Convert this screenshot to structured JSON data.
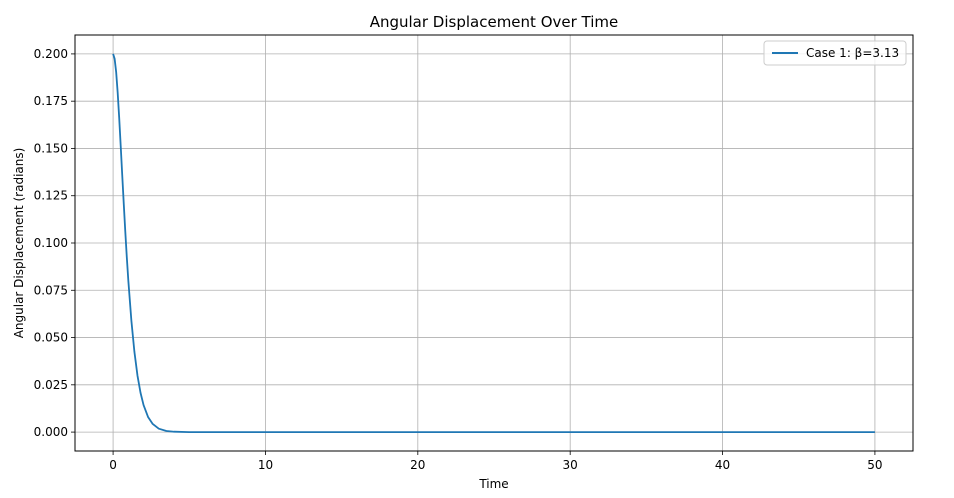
{
  "chart_data": {
    "type": "line",
    "title": "Angular Displacement Over Time",
    "xlabel": "Time",
    "ylabel": "Angular Displacement (radians)",
    "xlim": [
      -2.5,
      52.5
    ],
    "ylim": [
      -0.01,
      0.21
    ],
    "x_ticks": [
      0,
      10,
      20,
      30,
      40,
      50
    ],
    "x_tick_labels": [
      "0",
      "10",
      "20",
      "30",
      "40",
      "50"
    ],
    "y_ticks": [
      0.0,
      0.025,
      0.05,
      0.075,
      0.1,
      0.125,
      0.15,
      0.175,
      0.2
    ],
    "y_tick_labels": [
      "0.000",
      "0.025",
      "0.050",
      "0.075",
      "0.100",
      "0.125",
      "0.150",
      "0.175",
      "0.200"
    ],
    "grid": true,
    "legend_position": "top-right",
    "series": [
      {
        "name": "Case 1: β=3.13",
        "color": "#1f77b4",
        "x": [
          0,
          0.1,
          0.2,
          0.3,
          0.4,
          0.5,
          0.6,
          0.7,
          0.8,
          0.9,
          1.0,
          1.2,
          1.4,
          1.6,
          1.8,
          2.0,
          2.3,
          2.6,
          3.0,
          3.5,
          4.0,
          5.0,
          7.0,
          10,
          15,
          20,
          25,
          30,
          35,
          40,
          45,
          50
        ],
        "y": [
          0.2,
          0.1975,
          0.1905,
          0.1796,
          0.1662,
          0.1513,
          0.1359,
          0.1207,
          0.1061,
          0.0925,
          0.0801,
          0.059,
          0.0424,
          0.0299,
          0.0208,
          0.0143,
          0.0079,
          0.0043,
          0.0018,
          0.0006,
          0.0002,
          0.0,
          0.0,
          0.0,
          0.0,
          0.0,
          0.0,
          0.0,
          0.0,
          0.0,
          0.0,
          0.0
        ]
      }
    ]
  }
}
